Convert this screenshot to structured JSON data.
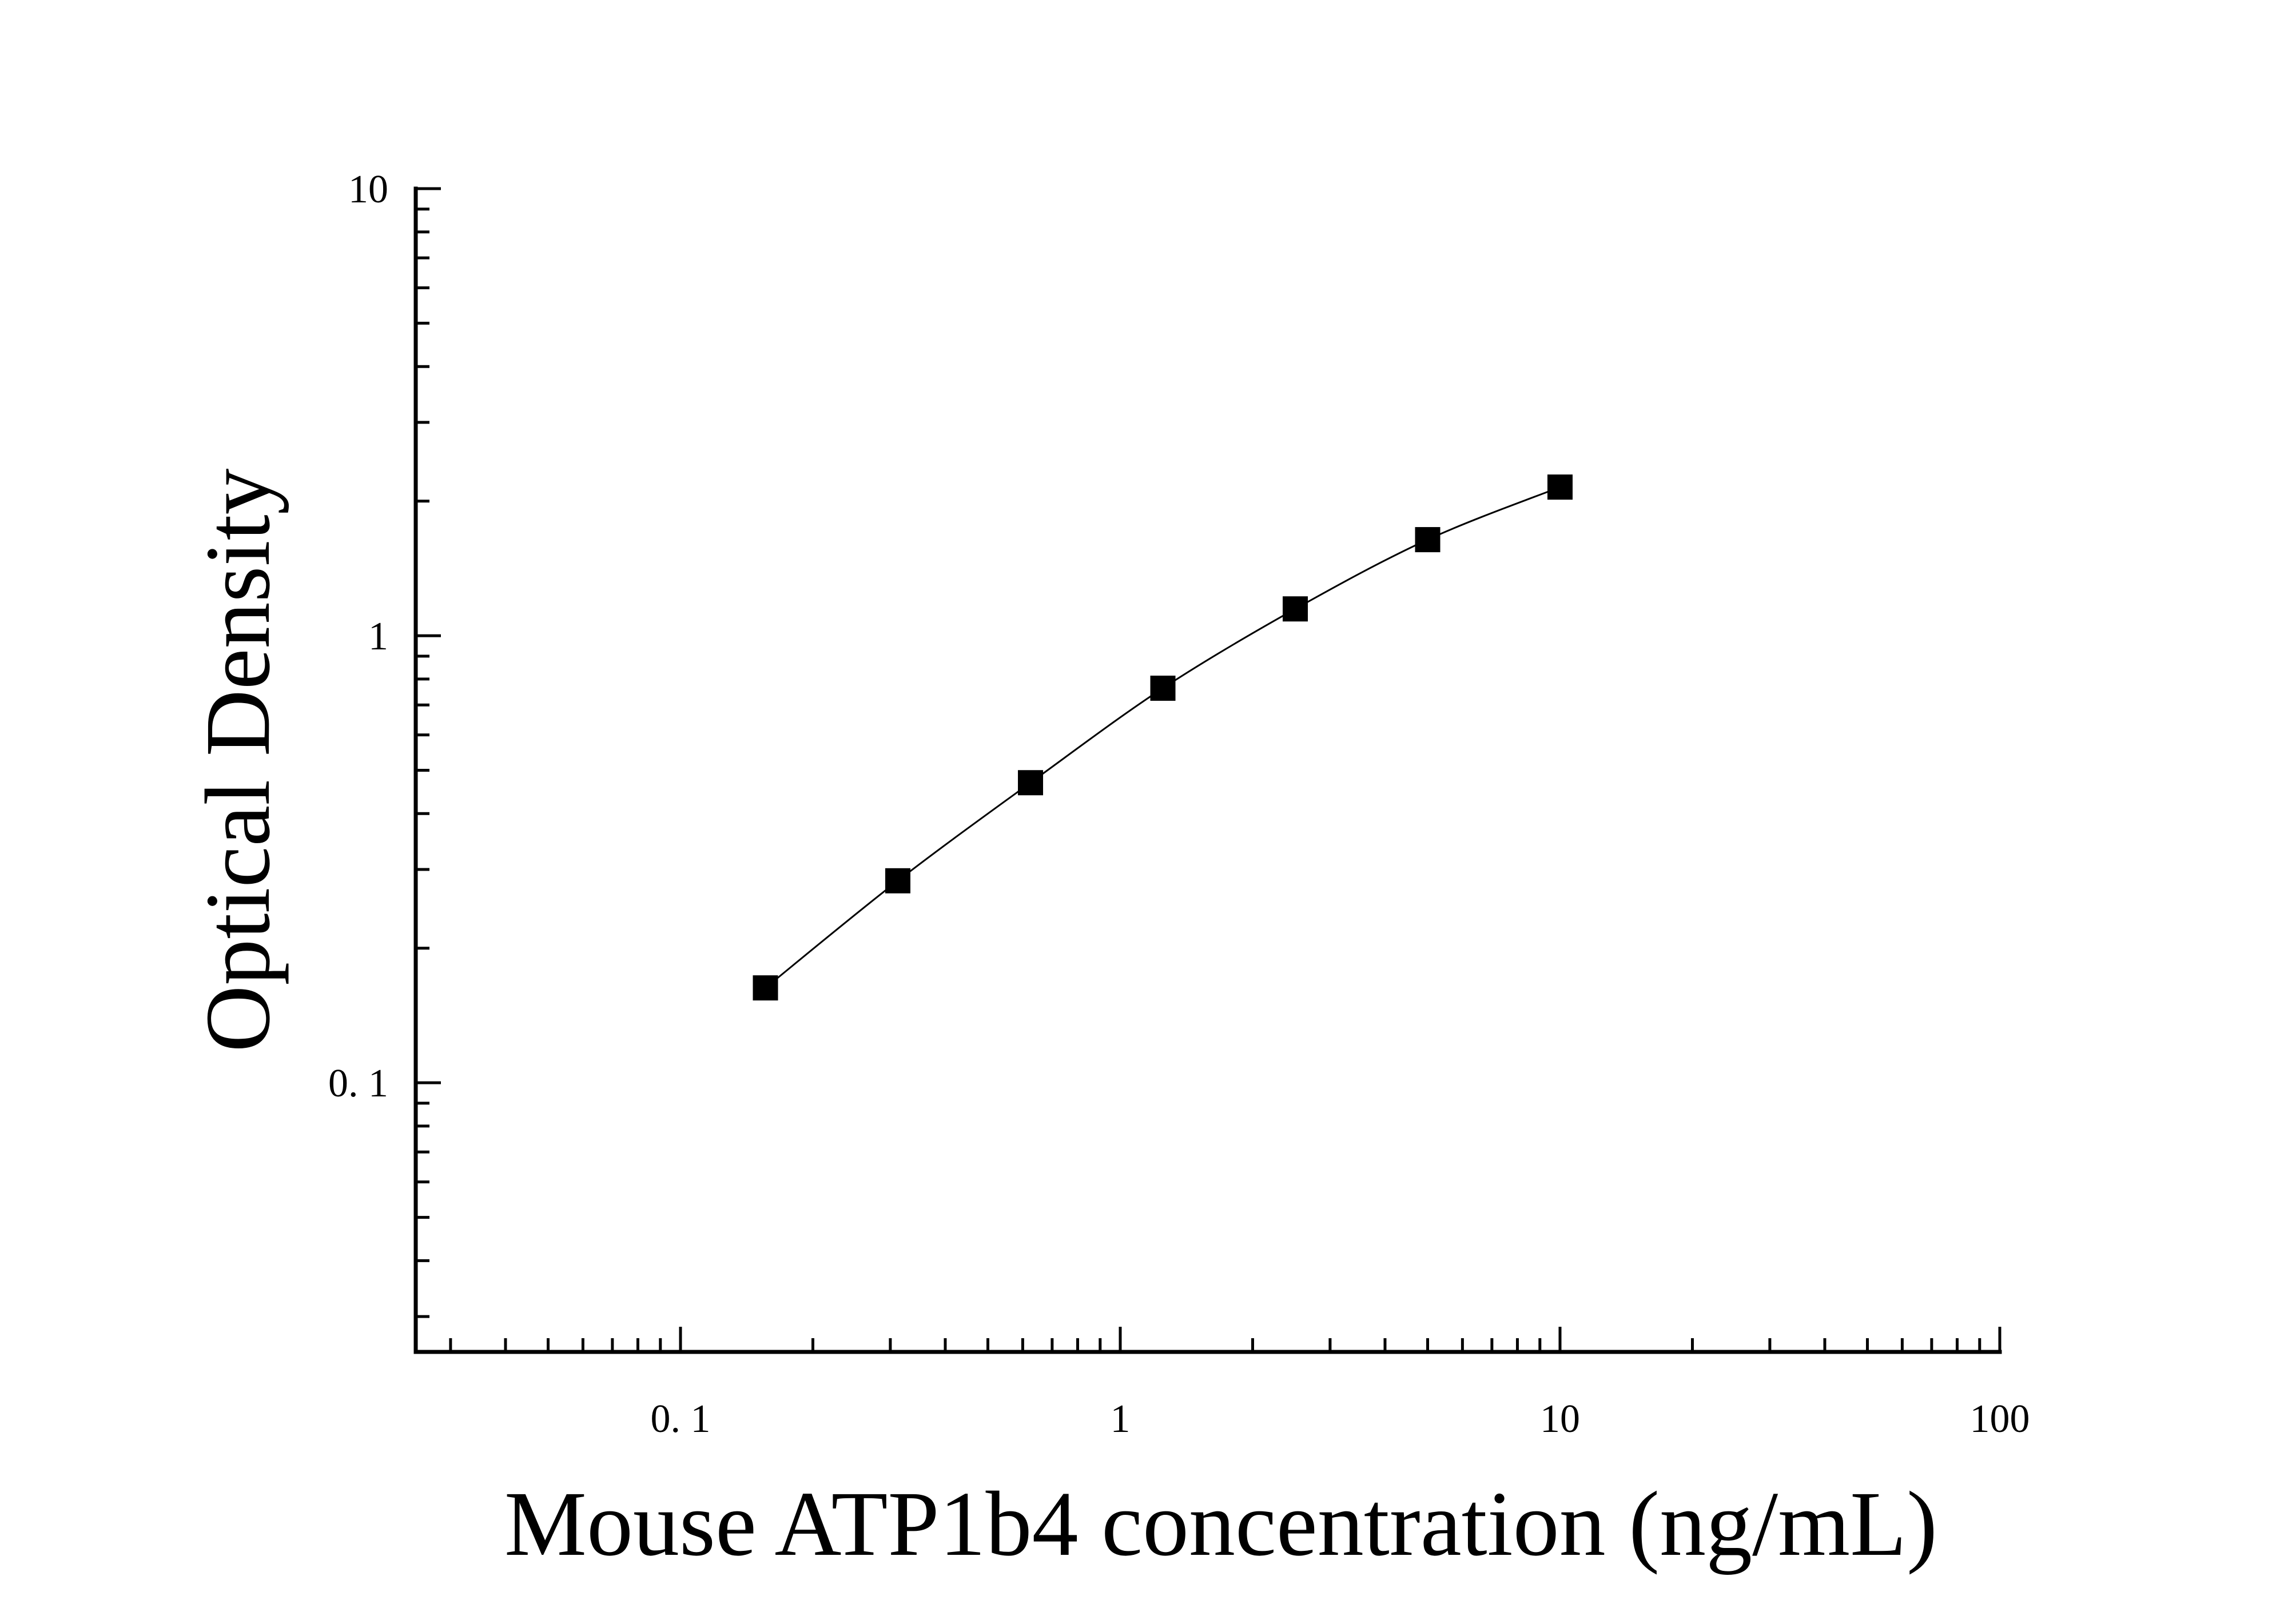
{
  "chart_data": {
    "type": "scatter",
    "xlabel": "Mouse ATP1b4 concentration (ng/mL)",
    "ylabel": "Optical Density",
    "xscale": "log",
    "yscale": "log",
    "xlim": [
      0.025,
      100
    ],
    "ylim": [
      0.025,
      10
    ],
    "grid": false,
    "x_ticks": [
      {
        "value": 0.1,
        "label": "0. 1"
      },
      {
        "value": 1,
        "label": "1"
      },
      {
        "value": 10,
        "label": "10"
      },
      {
        "value": 100,
        "label": "100"
      }
    ],
    "y_ticks": [
      {
        "value": 0.1,
        "label": "0. 1"
      },
      {
        "value": 1,
        "label": "1"
      },
      {
        "value": 10,
        "label": "10"
      }
    ],
    "series": [
      {
        "marker": "square",
        "color": "#000000",
        "fit_line": true,
        "points": [
          {
            "x": 0.156,
            "y": 0.163
          },
          {
            "x": 0.312,
            "y": 0.283
          },
          {
            "x": 0.625,
            "y": 0.469
          },
          {
            "x": 1.25,
            "y": 0.763
          },
          {
            "x": 2.5,
            "y": 1.148
          },
          {
            "x": 5,
            "y": 1.64
          },
          {
            "x": 10,
            "y": 2.15
          }
        ]
      }
    ]
  }
}
